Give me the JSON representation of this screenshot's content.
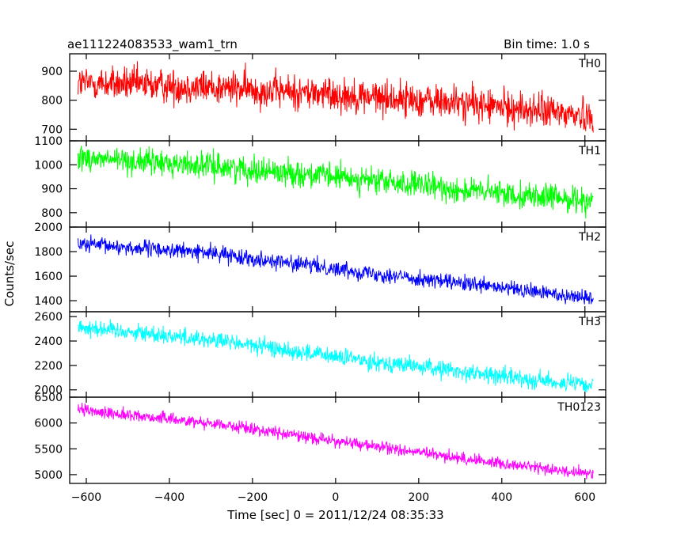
{
  "header": {
    "left_title": "ae111224083533_wam1_trn",
    "right_title": "Bin time: 1.0 s"
  },
  "axes": {
    "ylabel": "Counts/sec",
    "xlabel": "Time [sec] 0 = 2011/12/24 08:35:33",
    "x_ticks": [
      "−600",
      "−400",
      "−200",
      "0",
      "200",
      "400",
      "600"
    ]
  },
  "chart_data": {
    "type": "line",
    "xlim": [
      -640,
      650
    ],
    "x_tick_values": [
      -600,
      -400,
      -200,
      0,
      200,
      400,
      600
    ],
    "x_range": [
      -620,
      620
    ],
    "grid": false,
    "panels": [
      {
        "name": "TH0",
        "color": "#ff0000",
        "ylim": [
          660,
          960
        ],
        "y_ticks": [
          700,
          800,
          900
        ],
        "y_tick_labels": [
          "700",
          "800",
          "900"
        ],
        "trend": [
          [
            -620,
            860
          ],
          [
            -300,
            845
          ],
          [
            0,
            820
          ],
          [
            300,
            790
          ],
          [
            620,
            745
          ]
        ],
        "noise": 42
      },
      {
        "name": "TH1",
        "color": "#00ff00",
        "ylim": [
          740,
          1100
        ],
        "y_ticks": [
          800,
          900,
          1000,
          1100
        ],
        "y_tick_labels": [
          "800",
          "900",
          "1000",
          "1100"
        ],
        "trend": [
          [
            -620,
            1030
          ],
          [
            -300,
            995
          ],
          [
            0,
            950
          ],
          [
            300,
            895
          ],
          [
            620,
            850
          ]
        ],
        "noise": 38
      },
      {
        "name": "TH2",
        "color": "#0000ff",
        "ylim": [
          1310,
          2000
        ],
        "y_ticks": [
          1400,
          1600,
          1800,
          2000
        ],
        "y_tick_labels": [
          "1400",
          "1600",
          "1800",
          "2000"
        ],
        "trend": [
          [
            -620,
            1860
          ],
          [
            -300,
            1790
          ],
          [
            0,
            1660
          ],
          [
            300,
            1540
          ],
          [
            620,
            1420
          ]
        ],
        "noise": 45
      },
      {
        "name": "TH3",
        "color": "#00ffff",
        "ylim": [
          1940,
          2640
        ],
        "y_ticks": [
          2000,
          2200,
          2400,
          2600
        ],
        "y_tick_labels": [
          "2000",
          "2200",
          "2400",
          "2600"
        ],
        "trend": [
          [
            -620,
            2520
          ],
          [
            -300,
            2410
          ],
          [
            0,
            2270
          ],
          [
            300,
            2150
          ],
          [
            620,
            2030
          ]
        ],
        "noise": 50
      },
      {
        "name": "TH0123",
        "color": "#ff00ff",
        "ylim": [
          4830,
          6500
        ],
        "y_ticks": [
          5000,
          5500,
          6000,
          6500
        ],
        "y_tick_labels": [
          "5000",
          "5500",
          "6000",
          "6500"
        ],
        "trend": [
          [
            -620,
            6250
          ],
          [
            -300,
            6000
          ],
          [
            0,
            5650
          ],
          [
            300,
            5320
          ],
          [
            620,
            5000
          ]
        ],
        "noise": 80
      }
    ]
  }
}
